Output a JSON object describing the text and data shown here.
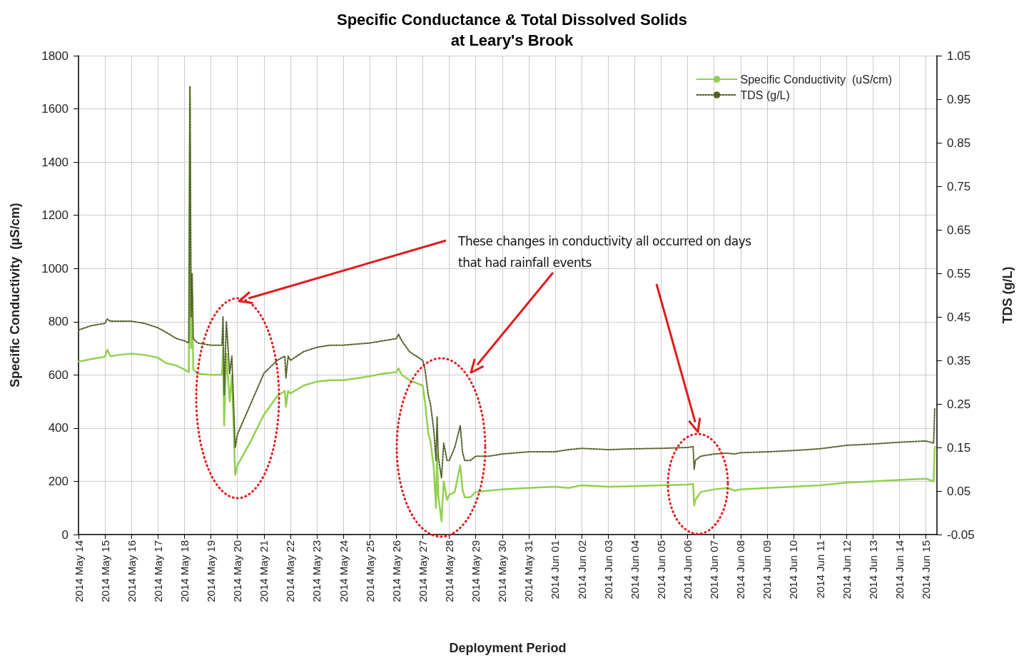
{
  "chart_data": {
    "type": "line",
    "title": "Specific Conductance & Total Dissolved Solids\nat Leary's Brook",
    "xlabel": "Deployment Period",
    "ylabel": "Specific Conductivity  (µS/cm)",
    "y2label": "TDS (g/L)",
    "annotations": [
      "These changes in conductivity all occurred on days that had rainfall events"
    ],
    "x": [
      "2014-05-14T00:00",
      "2014-05-14T12:00",
      "2014-05-15T00:00",
      "2014-05-15T02:00",
      "2014-05-15T05:00",
      "2014-05-15T12:00",
      "2014-05-16T00:00",
      "2014-05-16T12:00",
      "2014-05-17T00:00",
      "2014-05-17T07:00",
      "2014-05-17T17:00",
      "2014-05-18T00:00",
      "2014-05-18T04:00",
      "2014-05-18T05:00",
      "2014-05-18T06:00",
      "2014-05-18T07:00",
      "2014-05-18T08:00",
      "2014-05-18T12:00",
      "2014-05-19T00:00",
      "2014-05-19T10:00",
      "2014-05-19T11:00",
      "2014-05-19T12:00",
      "2014-05-19T14:00",
      "2014-05-19T17:00",
      "2014-05-19T19:00",
      "2014-05-19T22:00",
      "2014-05-20T00:00",
      "2014-05-20T12:00",
      "2014-05-21T00:00",
      "2014-05-21T12:00",
      "2014-05-21T19:00",
      "2014-05-21T20:00",
      "2014-05-21T22:00",
      "2014-05-22T00:00",
      "2014-05-22T12:00",
      "2014-05-23T00:00",
      "2014-05-23T12:00",
      "2014-05-24T00:00",
      "2014-05-25T00:00",
      "2014-05-25T12:00",
      "2014-05-26T00:00",
      "2014-05-26T02:00",
      "2014-05-26T05:00",
      "2014-05-26T12:00",
      "2014-05-27T00:00",
      "2014-05-27T02:00",
      "2014-05-27T05:00",
      "2014-05-27T07:00",
      "2014-05-27T10:00",
      "2014-05-27T12:00",
      "2014-05-27T13:00",
      "2014-05-27T14:00",
      "2014-05-27T17:00",
      "2014-05-27T19:00",
      "2014-05-27T22:00",
      "2014-05-28T00:00",
      "2014-05-28T05:00",
      "2014-05-28T10:00",
      "2014-05-28T12:00",
      "2014-05-28T14:00",
      "2014-05-28T19:00",
      "2014-05-29T00:00",
      "2014-05-29T12:00",
      "2014-05-30T00:00",
      "2014-05-31T00:00",
      "2014-06-01T00:00",
      "2014-06-01T12:00",
      "2014-06-02T00:00",
      "2014-06-03T00:00",
      "2014-06-04T00:00",
      "2014-06-05T00:00",
      "2014-06-06T00:00",
      "2014-06-06T05:00",
      "2014-06-06T06:00",
      "2014-06-06T07:00",
      "2014-06-06T12:00",
      "2014-06-07T00:00",
      "2014-06-07T12:00",
      "2014-06-07T19:00",
      "2014-06-08T00:00",
      "2014-06-09T00:00",
      "2014-06-10T00:00",
      "2014-06-11T00:00",
      "2014-06-12T00:00",
      "2014-06-13T00:00",
      "2014-06-14T00:00",
      "2014-06-15T00:00",
      "2014-06-15T07:00",
      "2014-06-15T08:00"
    ],
    "series": [
      {
        "name": "Specific Conductivity  (uS/cm)",
        "color": "#92d050",
        "values": [
          650,
          660,
          668,
          695,
          670,
          675,
          680,
          675,
          665,
          645,
          635,
          620,
          610,
          1680,
          700,
          900,
          620,
          605,
          600,
          600,
          700,
          410,
          680,
          500,
          600,
          224,
          260,
          350,
          450,
          520,
          540,
          480,
          540,
          530,
          560,
          575,
          580,
          580,
          595,
          605,
          610,
          625,
          600,
          580,
          560,
          500,
          380,
          350,
          250,
          100,
          300,
          150,
          50,
          200,
          130,
          150,
          160,
          260,
          170,
          140,
          140,
          160,
          165,
          170,
          175,
          180,
          175,
          185,
          180,
          182,
          185,
          188,
          190,
          110,
          130,
          160,
          170,
          175,
          165,
          170,
          175,
          180,
          185,
          195,
          200,
          205,
          210,
          200,
          330
        ]
      },
      {
        "name": "TDS (g/L)",
        "color": "#4f6228",
        "axis": "y2",
        "line_style": "dotted",
        "values": [
          0.42,
          0.43,
          0.435,
          0.445,
          0.44,
          0.44,
          0.44,
          0.435,
          0.425,
          0.415,
          0.4,
          0.395,
          0.39,
          0.98,
          0.45,
          0.55,
          0.4,
          0.39,
          0.385,
          0.385,
          0.45,
          0.27,
          0.44,
          0.32,
          0.36,
          0.15,
          0.18,
          0.25,
          0.32,
          0.35,
          0.36,
          0.31,
          0.36,
          0.35,
          0.37,
          0.38,
          0.385,
          0.385,
          0.39,
          0.395,
          0.4,
          0.41,
          0.395,
          0.37,
          0.35,
          0.33,
          0.27,
          0.25,
          0.19,
          0.12,
          0.22,
          0.13,
          0.08,
          0.16,
          0.12,
          0.12,
          0.15,
          0.2,
          0.14,
          0.12,
          0.12,
          0.13,
          0.13,
          0.135,
          0.14,
          0.14,
          0.145,
          0.148,
          0.145,
          0.147,
          0.148,
          0.15,
          0.152,
          0.1,
          0.12,
          0.13,
          0.135,
          0.137,
          0.135,
          0.138,
          0.14,
          0.143,
          0.147,
          0.155,
          0.158,
          0.162,
          0.165,
          0.16,
          0.24
        ]
      }
    ],
    "xlim": [
      "2014-05-14T00:00",
      "2014-06-15T10:00"
    ],
    "xticks": [
      {
        "value": "2014-05-14",
        "label": "2014 May 14"
      },
      {
        "value": "2014-05-15",
        "label": "2014 May 15"
      },
      {
        "value": "2014-05-16",
        "label": "2014 May 16"
      },
      {
        "value": "2014-05-17",
        "label": "2014 May 17"
      },
      {
        "value": "2014-05-18",
        "label": "2014 May 18"
      },
      {
        "value": "2014-05-19",
        "label": "2014 May 19"
      },
      {
        "value": "2014-05-20",
        "label": "2014 May 20"
      },
      {
        "value": "2014-05-21",
        "label": "2014 May 21"
      },
      {
        "value": "2014-05-22",
        "label": "2014 May 22"
      },
      {
        "value": "2014-05-23",
        "label": "2014 May 23"
      },
      {
        "value": "2014-05-24",
        "label": "2014 May 24"
      },
      {
        "value": "2014-05-25",
        "label": "2014 May 25"
      },
      {
        "value": "2014-05-26",
        "label": "2014 May 26"
      },
      {
        "value": "2014-05-27",
        "label": "2014 May 27"
      },
      {
        "value": "2014-05-28",
        "label": "2014 May 28"
      },
      {
        "value": "2014-05-29",
        "label": "2014 May 29"
      },
      {
        "value": "2014-05-30",
        "label": "2014 May 30"
      },
      {
        "value": "2014-05-31",
        "label": "2014 May 31"
      },
      {
        "value": "2014-06-01",
        "label": "2014 Jun 01"
      },
      {
        "value": "2014-06-02",
        "label": "2014 Jun 02"
      },
      {
        "value": "2014-06-03",
        "label": "2014 Jun 03"
      },
      {
        "value": "2014-06-04",
        "label": "2014 Jun 04"
      },
      {
        "value": "2014-06-05",
        "label": "2014 Jun 05"
      },
      {
        "value": "2014-06-06",
        "label": "2014 Jun 06"
      },
      {
        "value": "2014-06-07",
        "label": "2014 Jun 07"
      },
      {
        "value": "2014-06-08",
        "label": "2014 Jun 08"
      },
      {
        "value": "2014-06-09",
        "label": "2014 Jun 09"
      },
      {
        "value": "2014-06-10",
        "label": "2014 Jun 10"
      },
      {
        "value": "2014-06-11",
        "label": "2014 Jun 11"
      },
      {
        "value": "2014-06-12",
        "label": "2014 Jun 12"
      },
      {
        "value": "2014-06-13",
        "label": "2014 Jun 13"
      },
      {
        "value": "2014-06-14",
        "label": "2014 Jun 14"
      },
      {
        "value": "2014-06-15",
        "label": "2014 Jun 15"
      }
    ],
    "ylim": [
      0,
      1800
    ],
    "yticks": [
      0,
      200,
      400,
      600,
      800,
      1000,
      1200,
      1400,
      1600,
      1800
    ],
    "y2lim": [
      -0.05,
      1.05
    ],
    "y2ticks": [
      -0.05,
      0.05,
      0.15,
      0.25,
      0.35,
      0.45,
      0.55,
      0.65,
      0.75,
      0.85,
      0.95,
      1.05
    ],
    "grid": true,
    "legend": "top right",
    "marker": "none"
  }
}
